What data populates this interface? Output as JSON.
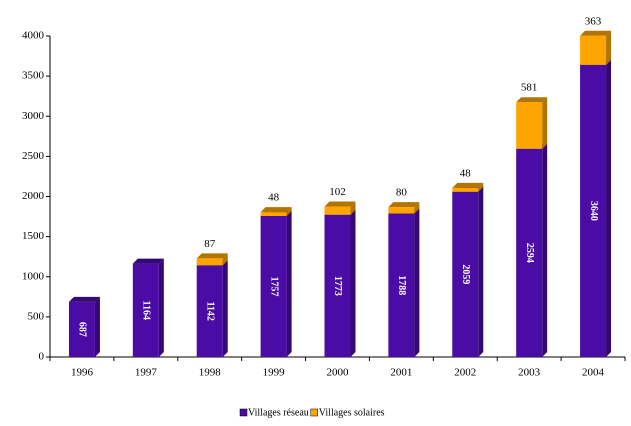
{
  "chart_data": {
    "type": "stacked_bar",
    "categories": [
      "1996",
      "1997",
      "1998",
      "1999",
      "2000",
      "2001",
      "2002",
      "2003",
      "2004"
    ],
    "series": [
      {
        "name": "Villages réseau",
        "color": "#4b0ca6",
        "values": [
          687,
          1164,
          1142,
          1757,
          1773,
          1788,
          2059,
          2594,
          3640
        ]
      },
      {
        "name": "Villages solaires",
        "color": "#ffa500",
        "values": [
          null,
          null,
          87,
          48,
          102,
          80,
          48,
          581,
          363
        ]
      }
    ],
    "ylim": [
      0,
      4000
    ],
    "yticks": [
      0,
      500,
      1000,
      1500,
      2000,
      2500,
      3000,
      3500,
      4000
    ]
  }
}
